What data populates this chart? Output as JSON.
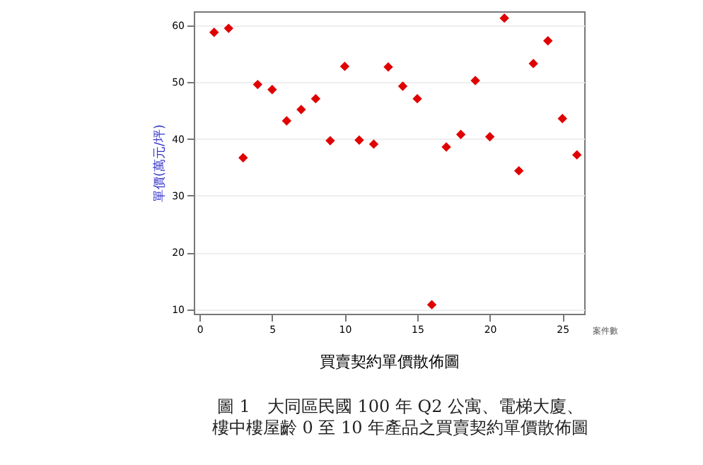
{
  "chart_data": {
    "type": "scatter",
    "xlabel": "買賣契約單價散佈圖",
    "ylabel": "單價(萬元/坪)",
    "x": [
      1,
      2,
      3,
      4,
      5,
      6,
      7,
      8,
      9,
      10,
      11,
      12,
      13,
      14,
      15,
      16,
      17,
      18,
      19,
      20,
      21,
      22,
      23,
      24,
      25,
      26
    ],
    "series": [
      {
        "color": "#e00000",
        "values": [
          58.8,
          59.5,
          36.7,
          49.6,
          48.7,
          43.2,
          45.2,
          47.1,
          39.7,
          52.8,
          39.8,
          39.1,
          52.7,
          49.3,
          47.1,
          10.8,
          38.6,
          40.8,
          50.3,
          40.4,
          61.3,
          34.4,
          53.3,
          57.3,
          43.6,
          37.2
        ]
      }
    ],
    "xlim": [
      -0.4,
      26.5
    ],
    "ylim": [
      9.2,
      62.5
    ],
    "xticks": [
      0,
      5,
      10,
      15,
      20,
      25
    ],
    "yticks": [
      10,
      20,
      30,
      40,
      50,
      60
    ],
    "grid": "y",
    "marker": "diamond",
    "annotations": [
      "案件數",
      "圖 1　大同區民國 100 年 Q2 公寓、電梯大廈、",
      "樓中樓屋齡 0 至 10 年產品之買賣契約單價散佈圖"
    ]
  }
}
